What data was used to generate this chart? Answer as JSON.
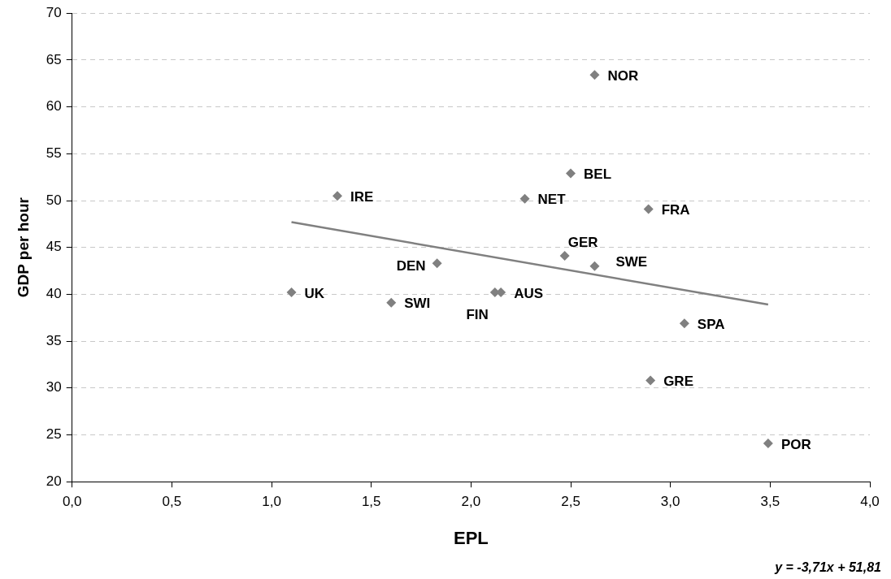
{
  "chart_data": {
    "type": "scatter",
    "xlabel": "EPL",
    "ylabel": "GDP per hour",
    "xlim": [
      0,
      4
    ],
    "xticks": [
      {
        "value": 0,
        "label": "0,0"
      },
      {
        "value": 0.5,
        "label": "0,5"
      },
      {
        "value": 1,
        "label": "1,0"
      },
      {
        "value": 1.5,
        "label": "1,5"
      },
      {
        "value": 2,
        "label": "2,0"
      },
      {
        "value": 2.5,
        "label": "2,5"
      },
      {
        "value": 3,
        "label": "3,0"
      },
      {
        "value": 3.5,
        "label": "3,5"
      },
      {
        "value": 4,
        "label": "4,0"
      }
    ],
    "ylim": [
      20,
      70
    ],
    "yticks": [
      20,
      25,
      30,
      35,
      40,
      45,
      50,
      55,
      60,
      65,
      70
    ],
    "grid": "y",
    "legend": false,
    "marker": "diamond",
    "series": [
      {
        "name": "NOR",
        "color": "#808080",
        "x": [
          2.62
        ],
        "values": [
          63.4
        ]
      },
      {
        "name": "BEL",
        "color": "#808080",
        "x": [
          2.5
        ],
        "values": [
          52.9
        ]
      },
      {
        "name": "IRE",
        "color": "#808080",
        "x": [
          1.33
        ],
        "values": [
          50.5
        ]
      },
      {
        "name": "NET",
        "color": "#808080",
        "x": [
          2.27
        ],
        "values": [
          50.2
        ]
      },
      {
        "name": "FRA",
        "color": "#808080",
        "x": [
          2.89
        ],
        "values": [
          49.1
        ]
      },
      {
        "name": "GER",
        "color": "#808080",
        "x": [
          2.47
        ],
        "values": [
          44.1
        ]
      },
      {
        "name": "DEN",
        "color": "#808080",
        "x": [
          1.83
        ],
        "values": [
          43.3
        ]
      },
      {
        "name": "SWE",
        "color": "#808080",
        "x": [
          2.62
        ],
        "values": [
          43.0
        ]
      },
      {
        "name": "UK",
        "color": "#808080",
        "x": [
          1.1
        ],
        "values": [
          40.2
        ]
      },
      {
        "name": "FIN",
        "color": "#808080",
        "x": [
          2.12
        ],
        "values": [
          40.2
        ]
      },
      {
        "name": "AUS",
        "color": "#808080",
        "x": [
          2.15
        ],
        "values": [
          40.2
        ]
      },
      {
        "name": "SWI",
        "color": "#808080",
        "x": [
          1.6
        ],
        "values": [
          39.1
        ]
      },
      {
        "name": "SPA",
        "color": "#808080",
        "x": [
          3.07
        ],
        "values": [
          36.9
        ]
      },
      {
        "name": "GRE",
        "color": "#808080",
        "x": [
          2.9
        ],
        "values": [
          30.8
        ]
      },
      {
        "name": "POR",
        "color": "#808080",
        "x": [
          3.49
        ],
        "values": [
          24.1
        ]
      },
      {
        "type": "line",
        "color": "#808080",
        "marker": "none",
        "x": [
          1.1,
          3.49
        ],
        "values": [
          47.7,
          38.9
        ]
      }
    ],
    "annotations": [
      "y = -3,71x + 51,81"
    ]
  }
}
